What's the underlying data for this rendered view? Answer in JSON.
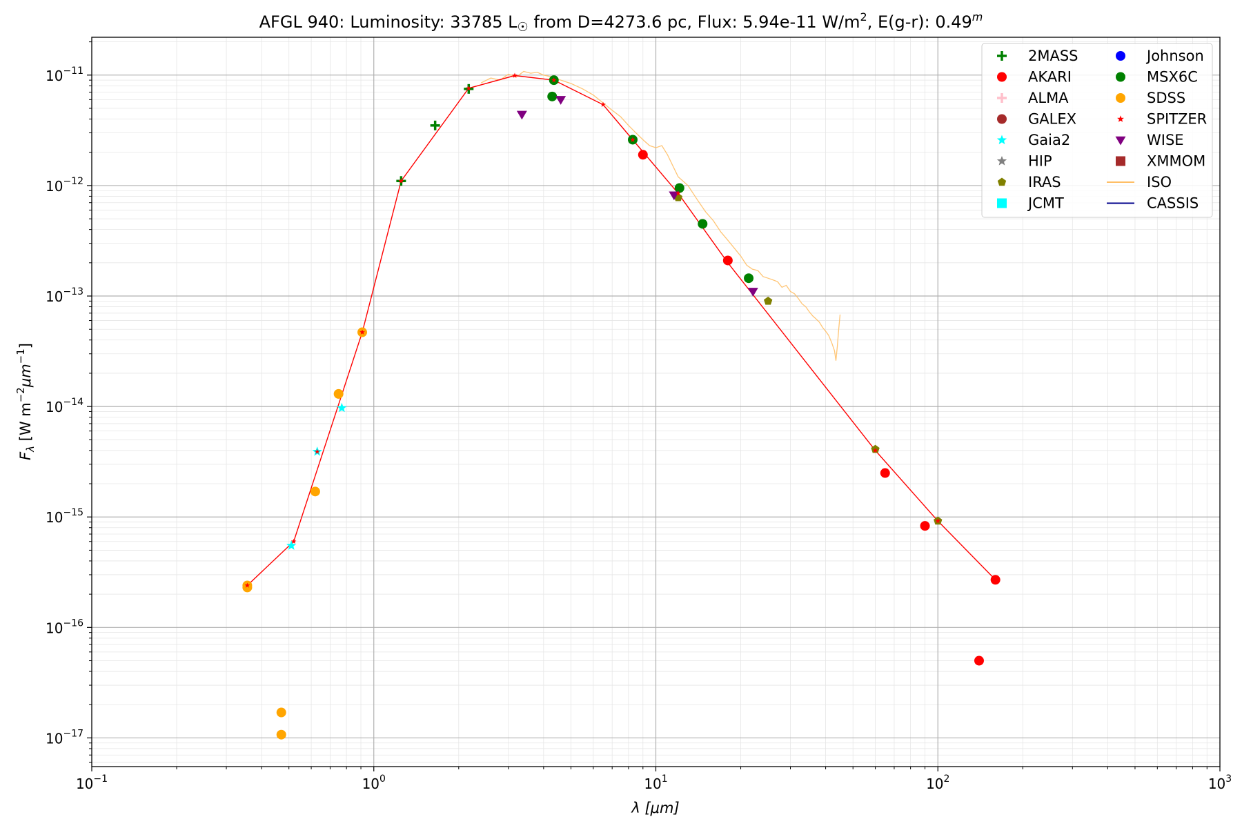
{
  "chart_data": {
    "type": "scatter",
    "title_parts": {
      "object": "AFGL 940:",
      "lum": "Luminosity: 33785 L",
      "sun": "☉",
      "dist": " from D=4273.6 pc, Flux: 5.94e-11 W/m",
      "sq": "2",
      "ext": ", E(g-r): 0.49",
      "mag": "m"
    },
    "xlabel": "λ [μm]",
    "ylabel_parts": {
      "f": "F",
      "sub": "λ",
      "u1": " [W m",
      "e1": "−2",
      "u2": "μm",
      "e2": "−1",
      "u3": "]"
    },
    "xscale": "log",
    "yscale": "log",
    "xlim": [
      0.1,
      1000
    ],
    "ylim": [
      5.5e-18,
      2.2e-11
    ],
    "grid": true,
    "legend_position": "upper-right",
    "x_ticks": [
      {
        "value": 0.1,
        "mant": "10",
        "exp": "−1"
      },
      {
        "value": 1,
        "mant": "10",
        "exp": "0"
      },
      {
        "value": 10,
        "mant": "10",
        "exp": "1"
      },
      {
        "value": 100,
        "mant": "10",
        "exp": "2"
      },
      {
        "value": 1000,
        "mant": "10",
        "exp": "3"
      }
    ],
    "y_ticks": [
      {
        "value": 1e-17,
        "mant": "10",
        "exp": "−17"
      },
      {
        "value": 1e-16,
        "mant": "10",
        "exp": "−16"
      },
      {
        "value": 1e-15,
        "mant": "10",
        "exp": "−15"
      },
      {
        "value": 1e-14,
        "mant": "10",
        "exp": "−14"
      },
      {
        "value": 1e-13,
        "mant": "10",
        "exp": "−13"
      },
      {
        "value": 1e-12,
        "mant": "10",
        "exp": "−12"
      },
      {
        "value": 1e-11,
        "mant": "10",
        "exp": "−11"
      }
    ],
    "model_line": {
      "color": "#ff0000",
      "x": [
        0.356,
        0.52,
        0.91,
        1.25,
        2.17,
        3.16,
        4.35,
        6.5,
        8.28,
        12,
        18,
        60,
        100,
        160
      ],
      "y": [
        2.4e-16,
        6e-16,
        4.7e-14,
        1.1e-12,
        7.6e-12,
        9.9e-12,
        9e-12,
        5.4e-12,
        2.6e-12,
        8.5e-13,
        2e-13,
        4e-15,
        9.2e-16,
        2.7e-16
      ]
    },
    "series": [
      {
        "name": "2MASS",
        "color": "#008000",
        "marker": "plus",
        "x": [
          1.25,
          1.65,
          2.17
        ],
        "y": [
          1.1e-12,
          3.5e-12,
          7.5e-12
        ]
      },
      {
        "name": "AKARI",
        "color": "#ff0000",
        "marker": "circle",
        "x": [
          9,
          18,
          65,
          90,
          140,
          160
        ],
        "y": [
          1.9e-12,
          2.1e-13,
          2.5e-15,
          8.3e-16,
          5e-17,
          2.7e-16
        ]
      },
      {
        "name": "ALMA",
        "color": "#ffc0cb",
        "marker": "plus",
        "x": [],
        "y": []
      },
      {
        "name": "GALEX",
        "color": "#a52a2a",
        "marker": "circle",
        "x": [],
        "y": []
      },
      {
        "name": "Gaia2",
        "color": "#00ffff",
        "marker": "star",
        "x": [
          0.51,
          0.63,
          0.77
        ],
        "y": [
          5.5e-16,
          3.9e-15,
          9.7e-15
        ]
      },
      {
        "name": "HIP",
        "color": "#808080",
        "marker": "star",
        "x": [],
        "y": []
      },
      {
        "name": "IRAS",
        "color": "#808000",
        "marker": "pentagon",
        "x": [
          12,
          25,
          60,
          100
        ],
        "y": [
          7.8e-13,
          9e-14,
          4.1e-15,
          9.2e-16
        ]
      },
      {
        "name": "JCMT",
        "color": "#00ffff",
        "marker": "square",
        "x": [],
        "y": []
      },
      {
        "name": "Johnson",
        "color": "#0000ff",
        "marker": "circle",
        "x": [],
        "y": []
      },
      {
        "name": "MSX6C",
        "color": "#008000",
        "marker": "circle",
        "x": [
          4.29,
          4.35,
          8.28,
          12.13,
          14.65,
          21.34
        ],
        "y": [
          6.4e-12,
          9e-12,
          2.6e-12,
          9.5e-13,
          4.5e-13,
          1.45e-13
        ]
      },
      {
        "name": "SDSS",
        "color": "#ffa500",
        "marker": "circle",
        "x": [
          0.356,
          0.356,
          0.47,
          0.47,
          0.62,
          0.75,
          0.91
        ],
        "y": [
          2.3e-16,
          2.4e-16,
          1.7e-17,
          1.07e-17,
          1.7e-15,
          1.3e-14,
          4.7e-14
        ]
      },
      {
        "name": "SPITZER",
        "color": "#ff0000",
        "marker": "star-small",
        "x": [
          0.356,
          0.52,
          0.63,
          0.91,
          1.25,
          2.17,
          3.16,
          4.35,
          6.5,
          8.28,
          12,
          18,
          60,
          100
        ],
        "y": [
          2.4e-16,
          6e-16,
          3.9e-15,
          4.7e-14,
          1.1e-12,
          7.6e-12,
          9.9e-12,
          9e-12,
          5.4e-12,
          2.6e-12,
          8.5e-13,
          2e-13,
          4e-15,
          9.2e-16
        ]
      },
      {
        "name": "WISE",
        "color": "#800080",
        "marker": "triangle-down",
        "x": [
          3.35,
          4.6,
          11.6,
          22.1
        ],
        "y": [
          4.4e-12,
          6e-12,
          8.2e-13,
          1.1e-13
        ]
      },
      {
        "name": "XMMOM",
        "color": "#a52a2a",
        "marker": "square",
        "x": [],
        "y": []
      }
    ],
    "iso_spectrum": {
      "name": "ISO",
      "color": "#ffbf66",
      "x": [
        2.4,
        2.6,
        2.8,
        3.0,
        3.2,
        3.4,
        3.6,
        3.8,
        4.0,
        4.3,
        4.6,
        5.0,
        5.5,
        6.0,
        6.5,
        7.0,
        7.5,
        8.0,
        8.5,
        9.0,
        9.5,
        10.0,
        10.5,
        11.0,
        11.5,
        12.0,
        13.0,
        14.0,
        15.0,
        16.0,
        17.0,
        18.0,
        19.0,
        20.0,
        21.0,
        22.0,
        23.0,
        24.0,
        25.0,
        26.0,
        27.0,
        28.0,
        29.0,
        30.0,
        31.0,
        32.0,
        33.0,
        34.0,
        35.0,
        36.0,
        37.0,
        38.0,
        39.0,
        40.0,
        41.0,
        42.0,
        43.0,
        43.5,
        44.0,
        44.5,
        45.0
      ],
      "y": [
        8.5e-12,
        9.4e-12,
        9e-12,
        1.02e-11,
        9.6e-12,
        1.08e-11,
        1.04e-11,
        1.06e-11,
        1e-11,
        9.6e-12,
        9e-12,
        8.4e-12,
        7.5e-12,
        6.6e-12,
        5.6e-12,
        4.8e-12,
        4.2e-12,
        3.5e-12,
        3e-12,
        2.6e-12,
        2.3e-12,
        2.2e-12,
        2.3e-12,
        1.9e-12,
        1.5e-12,
        1.2e-12,
        1e-12,
        7.5e-13,
        5.8e-13,
        4.8e-13,
        3.8e-13,
        3.2e-13,
        2.7e-13,
        2.3e-13,
        1.9e-13,
        1.75e-13,
        1.7e-13,
        1.5e-13,
        1.45e-13,
        1.4e-13,
        1.35e-13,
        1.2e-13,
        1.25e-13,
        1.1e-13,
        1.05e-13,
        9.5e-14,
        8.5e-14,
        8e-14,
        7.2e-14,
        6.6e-14,
        6.2e-14,
        5.8e-14,
        5.2e-14,
        4.8e-14,
        4.4e-14,
        3.8e-14,
        3.2e-14,
        2.6e-14,
        3.5e-14,
        5e-14,
        6.8e-14
      ]
    },
    "legend": {
      "entries": [
        {
          "label": "2MASS",
          "marker": "plus",
          "color": "#008000"
        },
        {
          "label": "AKARI",
          "marker": "circle",
          "color": "#ff0000"
        },
        {
          "label": "ALMA",
          "marker": "plus",
          "color": "#ffc0cb"
        },
        {
          "label": "GALEX",
          "marker": "circle",
          "color": "#a52a2a"
        },
        {
          "label": "Gaia2",
          "marker": "star",
          "color": "#00ffff"
        },
        {
          "label": "HIP",
          "marker": "star",
          "color": "#808080"
        },
        {
          "label": "IRAS",
          "marker": "pentagon",
          "color": "#808000"
        },
        {
          "label": "JCMT",
          "marker": "square",
          "color": "#00ffff"
        },
        {
          "label": "Johnson",
          "marker": "circle",
          "color": "#0000ff"
        },
        {
          "label": "MSX6C",
          "marker": "circle",
          "color": "#008000"
        },
        {
          "label": "SDSS",
          "marker": "circle",
          "color": "#ffa500"
        },
        {
          "label": "SPITZER",
          "marker": "star-small",
          "color": "#ff0000"
        },
        {
          "label": "WISE",
          "marker": "triangle-down",
          "color": "#800080"
        },
        {
          "label": "XMMOM",
          "marker": "square",
          "color": "#a52a2a"
        },
        {
          "label": "ISO",
          "marker": "line",
          "color": "#ffbf66"
        },
        {
          "label": "CASSIS",
          "marker": "line",
          "color": "#00008b"
        }
      ]
    }
  }
}
